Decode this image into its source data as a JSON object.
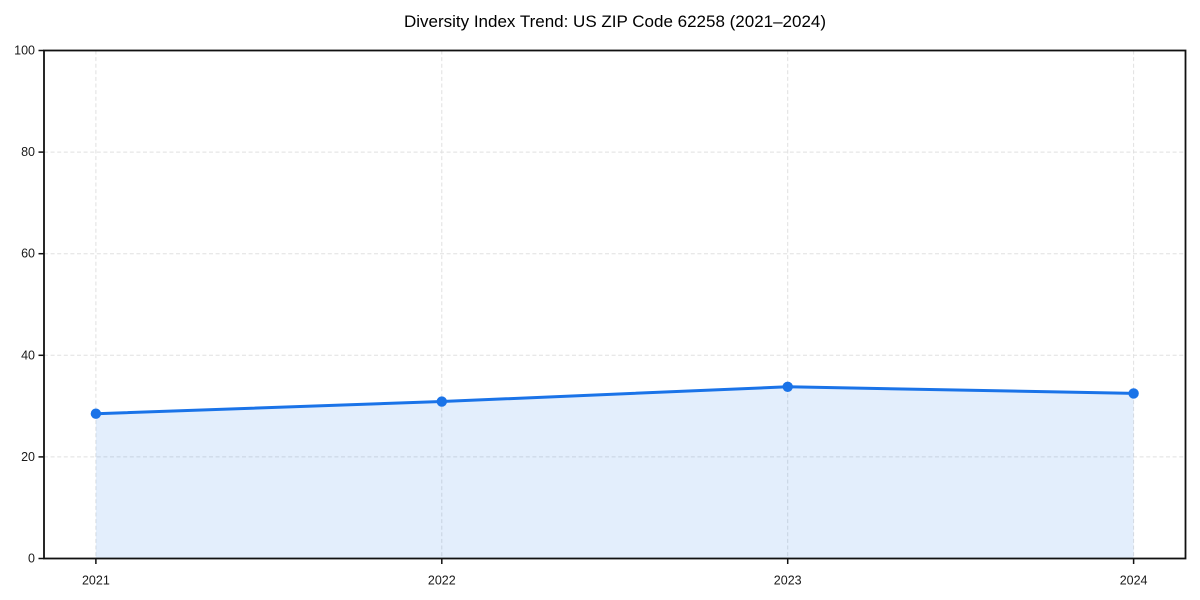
{
  "page": {
    "background_color": "#ffffff"
  },
  "chart_data": {
    "type": "line",
    "title": "Diversity Index Trend: US ZIP Code 62258 (2021–2024)",
    "categories": [
      "2021",
      "2022",
      "2023",
      "2024"
    ],
    "series": [
      {
        "name": "Diversity Index",
        "values": [
          28.5,
          30.9,
          33.8,
          32.5
        ]
      }
    ],
    "xlabel": "",
    "ylabel": "",
    "ylim": [
      0,
      100
    ],
    "yticks": [
      0,
      20,
      40,
      60,
      80,
      100
    ],
    "grid": true,
    "grid_style": "dashed",
    "legend_position": "none",
    "area_fill": true,
    "marker": "circle",
    "colors": {
      "line": "#1a73e8",
      "marker": "#1a73e8",
      "area_fill": "rgba(26,115,232,0.12)",
      "grid": "#e0e0e0",
      "axis": "#111111",
      "tick_text": "#1a1a1a",
      "title_text": "#000000"
    }
  }
}
